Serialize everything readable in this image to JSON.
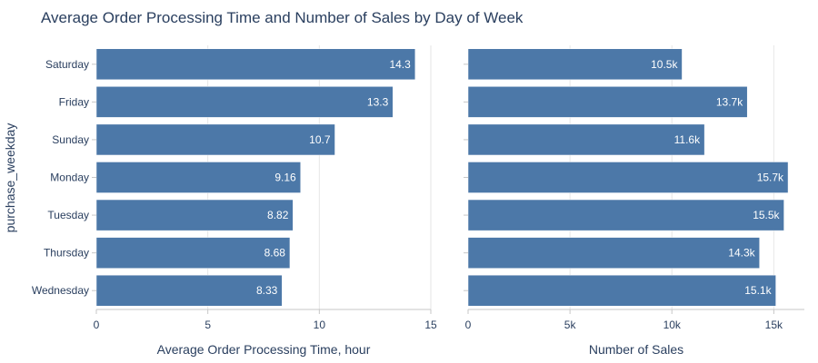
{
  "chart": {
    "title": "Average Order Processing Time and Number of Sales by Day of Week",
    "ylabel": "purchase_weekday",
    "colors": {
      "bar": "#4c78a8",
      "bar_edge": "#ffffff",
      "grid": "#e6e6e6",
      "axis": "#c7c7c7",
      "text": "#2a3f5f"
    }
  },
  "chart_data": [
    {
      "type": "bar",
      "orientation": "horizontal",
      "categories": [
        "Saturday",
        "Friday",
        "Sunday",
        "Monday",
        "Tuesday",
        "Thursday",
        "Wednesday"
      ],
      "values": [
        14.3,
        13.3,
        10.7,
        9.16,
        8.82,
        8.68,
        8.33
      ],
      "data_labels": [
        "14.3",
        "13.3",
        "10.7",
        "9.16",
        "8.82",
        "8.68",
        "8.33"
      ],
      "xlabel": "Average Order Processing Time, hour",
      "xlim": [
        0,
        15
      ],
      "xticks": [
        0,
        5,
        10,
        15
      ],
      "xtick_labels": [
        "0",
        "5",
        "10",
        "15"
      ],
      "grid": true
    },
    {
      "type": "bar",
      "orientation": "horizontal",
      "categories": [
        "Saturday",
        "Friday",
        "Sunday",
        "Monday",
        "Tuesday",
        "Thursday",
        "Wednesday"
      ],
      "values": [
        10500,
        13700,
        11600,
        15700,
        15500,
        14300,
        15100
      ],
      "data_labels": [
        "10.5k",
        "13.7k",
        "11.6k",
        "15.7k",
        "15.5k",
        "14.3k",
        "15.1k"
      ],
      "xlabel": "Number of Sales",
      "xlim": [
        0,
        16500
      ],
      "xticks": [
        0,
        5000,
        10000,
        15000
      ],
      "xtick_labels": [
        "0",
        "5k",
        "10k",
        "15k"
      ],
      "grid": true
    }
  ]
}
